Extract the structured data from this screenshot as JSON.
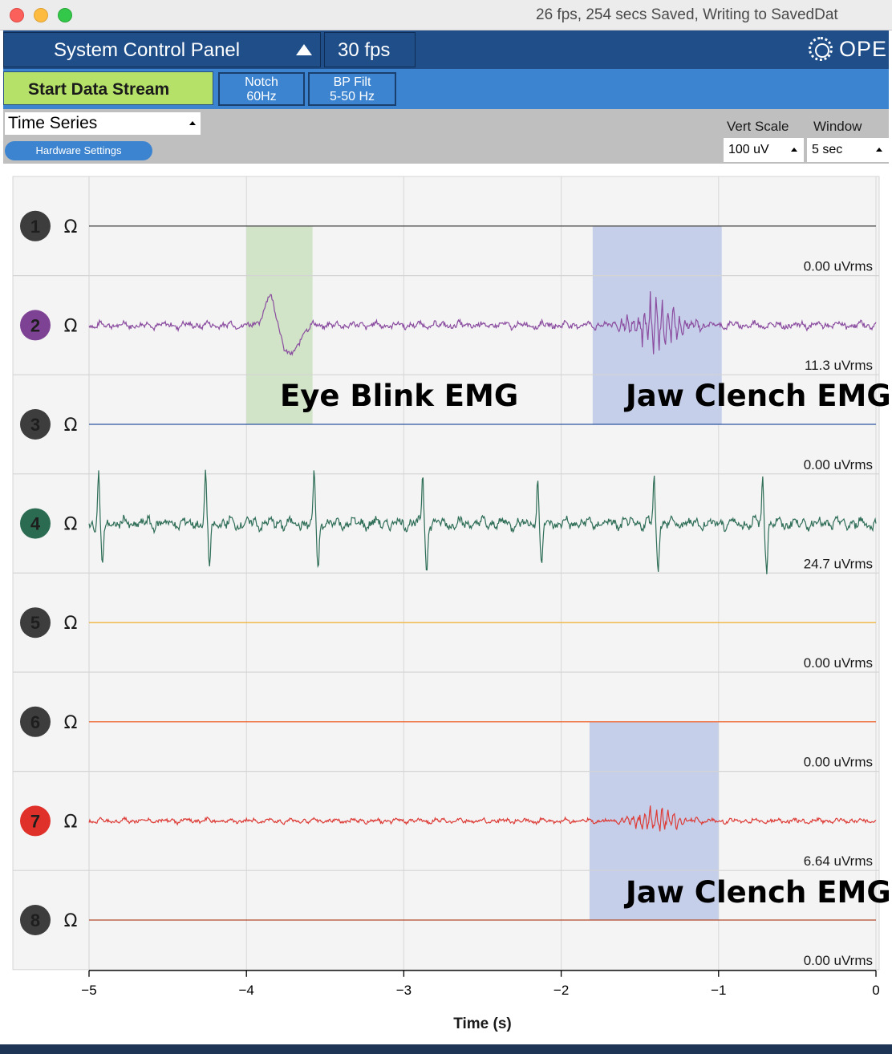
{
  "window": {
    "title": "26 fps, 254 secs Saved, Writing to SavedDat"
  },
  "topbar": {
    "panel_label": "System Control Panel",
    "fps_label": "30 fps",
    "logo_text": "OPE"
  },
  "toolbar": {
    "start_label": "Start Data Stream",
    "notch_line1": "Notch",
    "notch_line2": "60Hz",
    "bp_line1": "BP Filt",
    "bp_line2": "5-50 Hz"
  },
  "widget": {
    "selected": "Time Series",
    "hardware_label": "Hardware Settings",
    "vert_scale_header": "Vert Scale",
    "window_header": "Window",
    "vert_scale_value": "100 uV",
    "window_value": "5 sec"
  },
  "channels": [
    {
      "number": "1",
      "impedance": "Ω",
      "rms": "0.00 uVrms",
      "badge": "#3d3d3d",
      "line": "#4d4d4d"
    },
    {
      "number": "2",
      "impedance": "Ω",
      "rms": "11.3 uVrms",
      "badge": "#7d4294",
      "line": "#8b4da0"
    },
    {
      "number": "3",
      "impedance": "Ω",
      "rms": "0.00 uVrms",
      "badge": "#3d3d3d",
      "line": "#2d55a0"
    },
    {
      "number": "4",
      "impedance": "Ω",
      "rms": "24.7 uVrms",
      "badge": "#2b6b52",
      "line": "#2f6e57"
    },
    {
      "number": "5",
      "impedance": "Ω",
      "rms": "0.00 uVrms",
      "badge": "#3d3d3d",
      "line": "#f0b43c"
    },
    {
      "number": "6",
      "impedance": "Ω",
      "rms": "0.00 uVrms",
      "badge": "#3d3d3d",
      "line": "#ee6c3a"
    },
    {
      "number": "7",
      "impedance": "Ω",
      "rms": "6.64 uVrms",
      "badge": "#e0302a",
      "line": "#dd3b36"
    },
    {
      "number": "8",
      "impedance": "Ω",
      "rms": "0.00 uVrms",
      "badge": "#3d3d3d",
      "line": "#b04a2a"
    }
  ],
  "chart_data": {
    "type": "line",
    "xlabel": "Time (s)",
    "xlim": [
      -5,
      0
    ],
    "x_ticks": [
      "−5",
      "−4",
      "−3",
      "−2",
      "−1",
      "0"
    ],
    "highlights": [
      {
        "label": "Eye Blink EMG",
        "x_range": [
          -4.0,
          -3.58
        ],
        "channels": [
          "1",
          "2",
          "3"
        ],
        "color": "#cfe3c4"
      },
      {
        "label": "Jaw Clench EMG",
        "x_range": [
          -1.8,
          -0.98
        ],
        "channels": [
          "1",
          "2",
          "3"
        ],
        "color": "#c3cce8"
      },
      {
        "label": "Jaw Clench EMG",
        "x_range": [
          -1.82,
          -1.0
        ],
        "channels": [
          "6",
          "7",
          "8"
        ],
        "color": "#c3cce8"
      }
    ],
    "series": [
      {
        "channel": "1",
        "behavior": "flat"
      },
      {
        "channel": "2",
        "behavior": "noise",
        "events": [
          {
            "type": "eye-blink",
            "x": -3.77
          },
          {
            "type": "burst",
            "x": -1.4
          }
        ]
      },
      {
        "channel": "3",
        "behavior": "flat"
      },
      {
        "channel": "4",
        "behavior": "ecg-spikes",
        "spike_times": [
          -4.94,
          -4.26,
          -3.57,
          -2.88,
          -2.15,
          -1.41,
          -0.72
        ]
      },
      {
        "channel": "5",
        "behavior": "flat"
      },
      {
        "channel": "6",
        "behavior": "flat"
      },
      {
        "channel": "7",
        "behavior": "noise",
        "events": [
          {
            "type": "burst",
            "x": -1.4
          }
        ]
      },
      {
        "channel": "8",
        "behavior": "flat"
      }
    ]
  }
}
